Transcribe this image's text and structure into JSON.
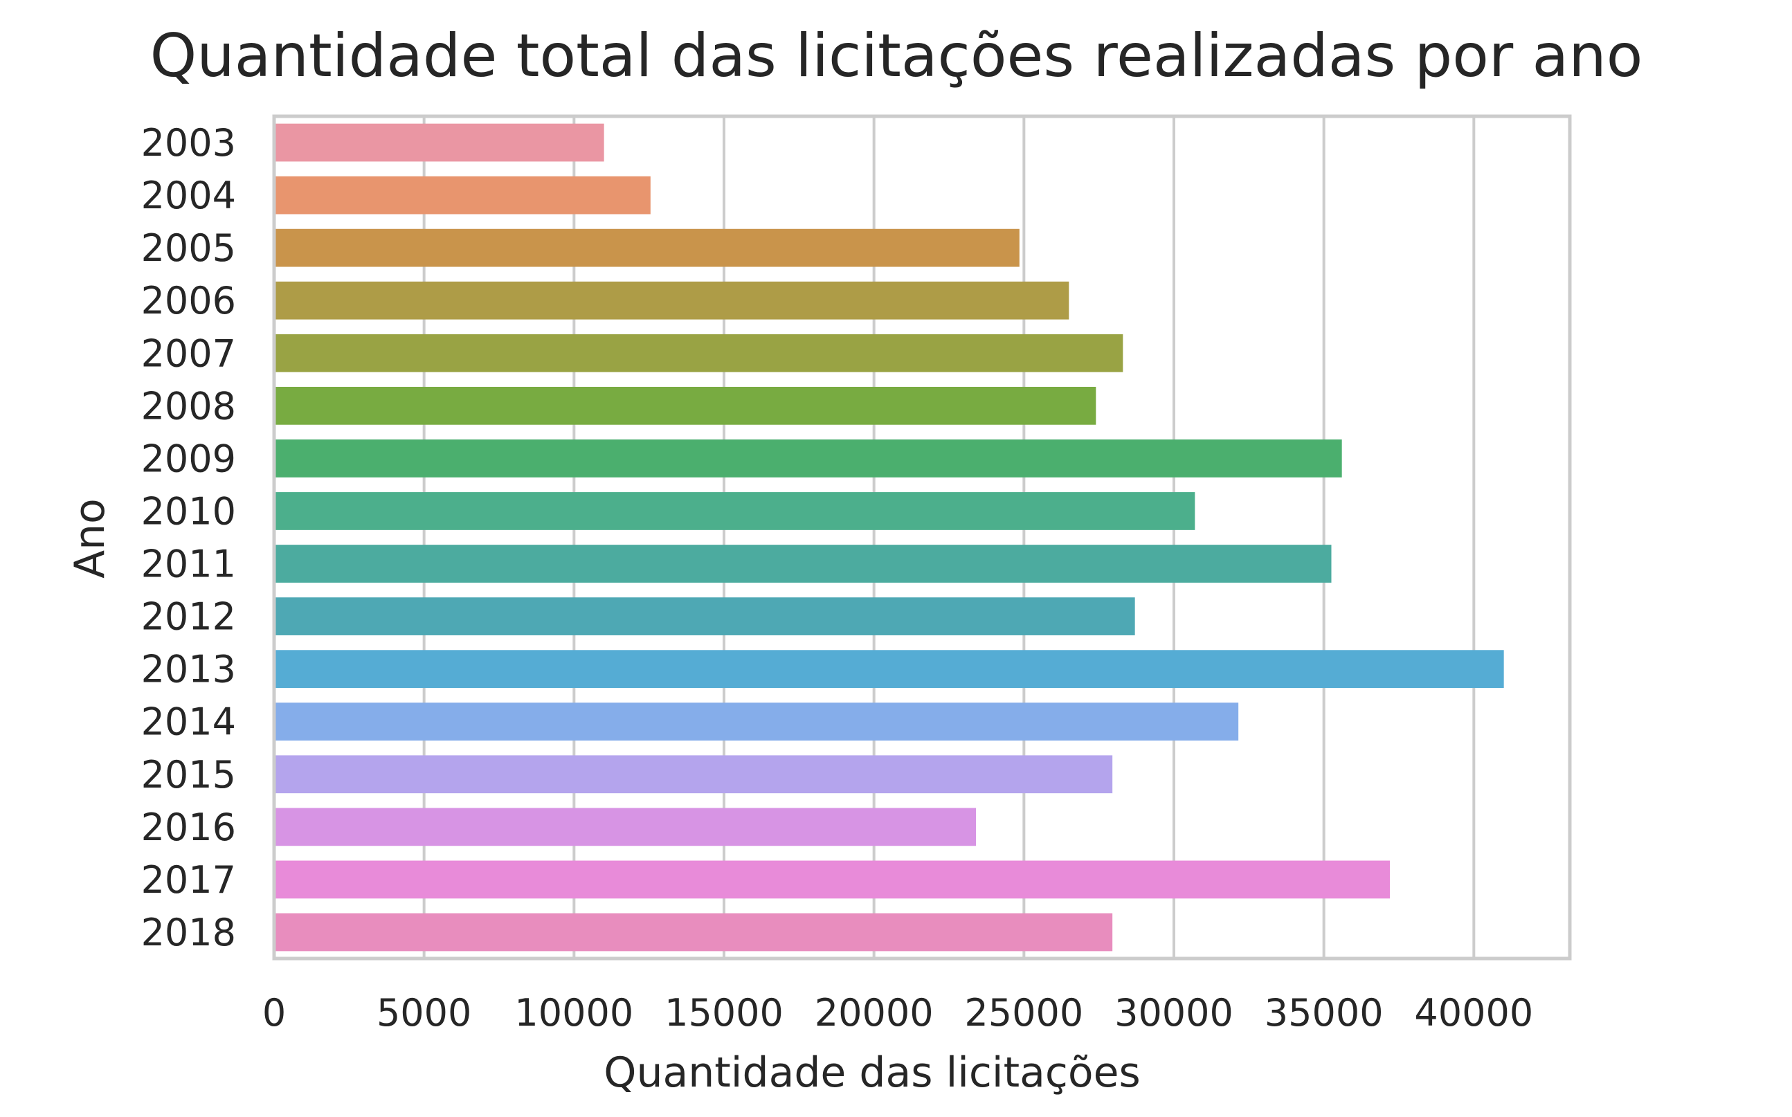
{
  "chart_data": {
    "type": "bar",
    "orientation": "horizontal",
    "title": "Quantidade total das licitações realizadas por ano",
    "xlabel": "Quantidade das licitações",
    "ylabel": "Ano",
    "xlim": [
      0,
      43200
    ],
    "xticks": [
      0,
      5000,
      10000,
      15000,
      20000,
      25000,
      30000,
      35000,
      40000
    ],
    "grid": true,
    "categories": [
      "2003",
      "2004",
      "2005",
      "2006",
      "2007",
      "2008",
      "2009",
      "2010",
      "2011",
      "2012",
      "2013",
      "2014",
      "2015",
      "2016",
      "2017",
      "2018"
    ],
    "values": [
      11000,
      12550,
      24850,
      26500,
      28300,
      27400,
      35600,
      30700,
      35250,
      28700,
      41000,
      32150,
      27950,
      23400,
      37200,
      27950
    ],
    "colors": [
      "#ea96a3",
      "#e8956e",
      "#c9944b",
      "#ae9c47",
      "#99a344",
      "#78ab41",
      "#4baf6e",
      "#4caf8c",
      "#4cab9f",
      "#4ea8b4",
      "#55acd4",
      "#85adea",
      "#b4a4ed",
      "#d794e4",
      "#e88bd9",
      "#e88dbe"
    ]
  }
}
